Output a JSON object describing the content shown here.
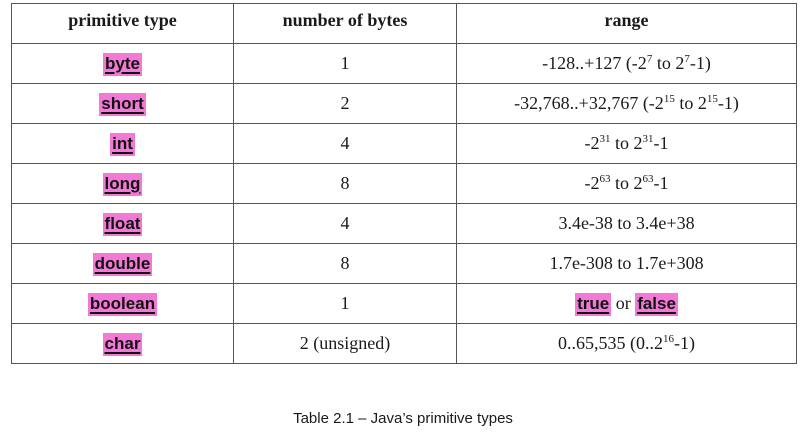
{
  "headers": {
    "type": "primitive type",
    "bytes": "number of bytes",
    "range": "range"
  },
  "rows": [
    {
      "type": "byte",
      "bytes": "1",
      "range": {
        "pre": "-128..+127 (-2",
        "sup1": "7",
        "mid": " to 2",
        "sup2": "7",
        "post": "-1)"
      }
    },
    {
      "type": "short",
      "bytes": "2",
      "range": {
        "pre": "-32,768..+32,767 (-2",
        "sup1": "15",
        "mid": " to 2",
        "sup2": "15",
        "post": "-1)"
      }
    },
    {
      "type": "int",
      "bytes": "4",
      "range": {
        "pre": "-2",
        "sup1": "31",
        "mid": " to 2",
        "sup2": "31",
        "post": "-1"
      }
    },
    {
      "type": "long",
      "bytes": "8",
      "range": {
        "pre": "-2",
        "sup1": "63",
        "mid": " to 2",
        "sup2": "63",
        "post": "-1"
      }
    },
    {
      "type": "float",
      "bytes": "4",
      "range": {
        "text": "3.4e-38 to 3.4e+38"
      }
    },
    {
      "type": "double",
      "bytes": "8",
      "range": {
        "text": "1.7e-308 to 1.7e+308"
      }
    },
    {
      "type": "boolean",
      "bytes": "1",
      "range": {
        "kw1": "true",
        "or": " or ",
        "kw2": "false"
      }
    },
    {
      "type": "char",
      "bytes": "2 (unsigned)",
      "range": {
        "pre": "0..65,535 (0..2",
        "sup1": "16",
        "post": "-1)"
      }
    }
  ],
  "caption": "Table 2.1 – Java’s primitive types",
  "colors": {
    "highlight": "#f27ad6",
    "border": "#555555"
  }
}
